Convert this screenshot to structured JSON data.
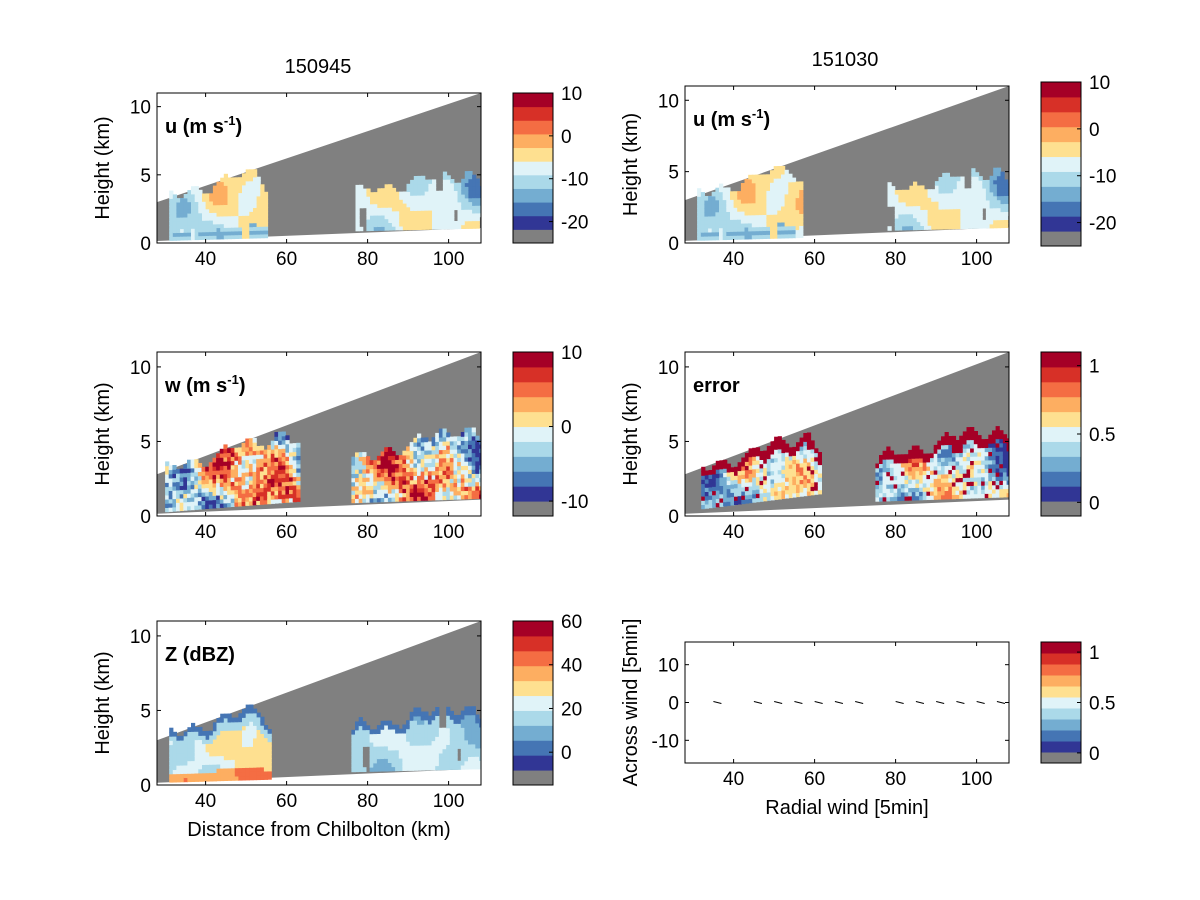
{
  "figure": {
    "column_titles": [
      "150945",
      "151030"
    ]
  },
  "colormap": [
    "#313695",
    "#4575b4",
    "#74add1",
    "#abd9e9",
    "#e0f3f8",
    "#fee090",
    "#fdae61",
    "#f46d43",
    "#d73027",
    "#a50026"
  ],
  "missing_color": "#808080",
  "chart_data": [
    {
      "id": "u-150945",
      "type": "heatmap",
      "panel_label": "u (m s",
      "panel_label_sup": "-1",
      "panel_label_end": ")",
      "ylabel": "Height (km)",
      "xlabel": "",
      "xlim": [
        28,
        108
      ],
      "ylim": [
        0,
        11
      ],
      "xticks": [
        40,
        60,
        80,
        100
      ],
      "yticks": [
        0,
        5,
        10
      ],
      "beam": {
        "lower": [
          [
            28,
            0.15
          ],
          [
            108,
            1.1
          ]
        ],
        "upper": [
          [
            28,
            3.0
          ],
          [
            108,
            11.0
          ]
        ]
      },
      "echo_regions": [
        {
          "x0": 31,
          "x1": 55,
          "top0": 3.2,
          "top1": 5.4,
          "base0": 0.2,
          "base1": 0.4,
          "mix": "warm-light"
        },
        {
          "x0": 77,
          "x1": 108,
          "top0": 3.5,
          "top1": 5.3,
          "base0": 0.9,
          "base1": 1.1,
          "mix": "cool-light"
        }
      ],
      "colorbar": {
        "ticks": [
          10,
          0,
          -10,
          -20
        ],
        "range": [
          -25,
          10
        ]
      }
    },
    {
      "id": "u-151030",
      "type": "heatmap",
      "panel_label": "u (m s",
      "panel_label_sup": "-1",
      "panel_label_end": ")",
      "ylabel": "Height (km)",
      "xlabel": "",
      "xlim": [
        28,
        108
      ],
      "ylim": [
        0,
        11
      ],
      "xticks": [
        40,
        60,
        80,
        100
      ],
      "yticks": [
        0,
        5,
        10
      ],
      "beam": {
        "lower": [
          [
            28,
            0.15
          ],
          [
            108,
            1.1
          ]
        ],
        "upper": [
          [
            28,
            3.0
          ],
          [
            108,
            11.0
          ]
        ]
      },
      "echo_regions": [
        {
          "x0": 31,
          "x1": 57,
          "top0": 3.2,
          "top1": 5.5,
          "base0": 0.2,
          "base1": 0.4,
          "mix": "warm-light"
        },
        {
          "x0": 78,
          "x1": 108,
          "top0": 3.5,
          "top1": 5.3,
          "base0": 0.9,
          "base1": 1.1,
          "mix": "cool-light"
        }
      ],
      "colorbar": {
        "ticks": [
          10,
          0,
          -10,
          -20
        ],
        "range": [
          -25,
          10
        ]
      }
    },
    {
      "id": "w-150945",
      "type": "heatmap",
      "panel_label": "w (m s",
      "panel_label_sup": "-1",
      "panel_label_end": ")",
      "ylabel": "Height (km)",
      "xlabel": "",
      "xlim": [
        28,
        108
      ],
      "ylim": [
        0,
        11
      ],
      "xticks": [
        40,
        60,
        80,
        100
      ],
      "yticks": [
        0,
        5,
        10
      ],
      "beam": {
        "lower": [
          [
            28,
            0.15
          ],
          [
            108,
            1.1
          ]
        ],
        "upper": [
          [
            28,
            2.8
          ],
          [
            108,
            11.0
          ]
        ]
      },
      "echo_regions": [
        {
          "x0": 30,
          "x1": 63,
          "top0": 2.9,
          "top1": 5.8,
          "base0": 0.3,
          "base1": 1.0,
          "mix": "full"
        },
        {
          "x0": 76,
          "x1": 108,
          "top0": 3.5,
          "top1": 6.2,
          "base0": 0.9,
          "base1": 1.2,
          "mix": "full"
        }
      ],
      "colorbar": {
        "ticks": [
          10,
          0,
          -10
        ],
        "range": [
          -12,
          10
        ]
      }
    },
    {
      "id": "error-151030",
      "type": "heatmap",
      "panel_label": "error",
      "panel_label_sup": "",
      "panel_label_end": "",
      "ylabel": "Height (km)",
      "xlabel": "",
      "xlim": [
        28,
        108
      ],
      "ylim": [
        0,
        11
      ],
      "xticks": [
        40,
        60,
        80,
        100
      ],
      "yticks": [
        0,
        5,
        10
      ],
      "beam": {
        "lower": [
          [
            28,
            0.15
          ],
          [
            108,
            1.1
          ]
        ],
        "upper": [
          [
            28,
            2.8
          ],
          [
            108,
            11.0
          ]
        ]
      },
      "echo_regions": [
        {
          "x0": 32,
          "x1": 61,
          "top0": 3.0,
          "top1": 5.7,
          "base0": 0.5,
          "base1": 1.5,
          "mix": "error"
        },
        {
          "x0": 75,
          "x1": 108,
          "top0": 3.6,
          "top1": 6.2,
          "base0": 1.0,
          "base1": 1.3,
          "mix": "error"
        }
      ],
      "colorbar": {
        "ticks": [
          1,
          0.5,
          0
        ],
        "range": [
          -0.1,
          1.1
        ]
      }
    },
    {
      "id": "z-150945",
      "type": "heatmap",
      "panel_label": "Z (dBZ)",
      "panel_label_sup": "",
      "panel_label_end": "",
      "ylabel": "Height (km)",
      "xlabel": "Distance from Chilbolton (km)",
      "xlim": [
        28,
        108
      ],
      "ylim": [
        0,
        11
      ],
      "xticks": [
        40,
        60,
        80,
        100
      ],
      "yticks": [
        0,
        5,
        10
      ],
      "beam": {
        "lower": [
          [
            28,
            0.15
          ],
          [
            108,
            1.1
          ]
        ],
        "upper": [
          [
            28,
            3.0
          ],
          [
            108,
            11.0
          ]
        ]
      },
      "echo_regions": [
        {
          "x0": 31,
          "x1": 56,
          "top0": 3.2,
          "top1": 5.3,
          "base0": 0.2,
          "base1": 0.4,
          "mix": "reflectivity"
        },
        {
          "x0": 76,
          "x1": 108,
          "top0": 3.6,
          "top1": 5.5,
          "base0": 0.9,
          "base1": 1.1,
          "mix": "cool-edge"
        }
      ],
      "colorbar": {
        "ticks": [
          60,
          40,
          20,
          0
        ],
        "range": [
          -15,
          60
        ]
      }
    },
    {
      "id": "wind-vectors",
      "type": "scatter",
      "panel_label": "",
      "panel_label_sup": "",
      "panel_label_end": "",
      "ylabel": "Across wind [5min]",
      "xlabel": "Radial wind [5min]",
      "xlim": [
        28,
        108
      ],
      "ylim": [
        -16,
        16
      ],
      "xticks": [
        40,
        60,
        80,
        100
      ],
      "yticks": [
        10,
        0,
        -10
      ],
      "x": [
        36,
        46,
        51,
        56,
        61,
        66,
        71,
        81,
        86,
        91,
        96,
        101,
        106
      ],
      "y": [
        0,
        0,
        0,
        0,
        0,
        0,
        0,
        0,
        0,
        0,
        0,
        0,
        0
      ],
      "colorbar": {
        "ticks": [
          1,
          0.5,
          0
        ],
        "range": [
          -0.1,
          1.1
        ]
      }
    }
  ]
}
